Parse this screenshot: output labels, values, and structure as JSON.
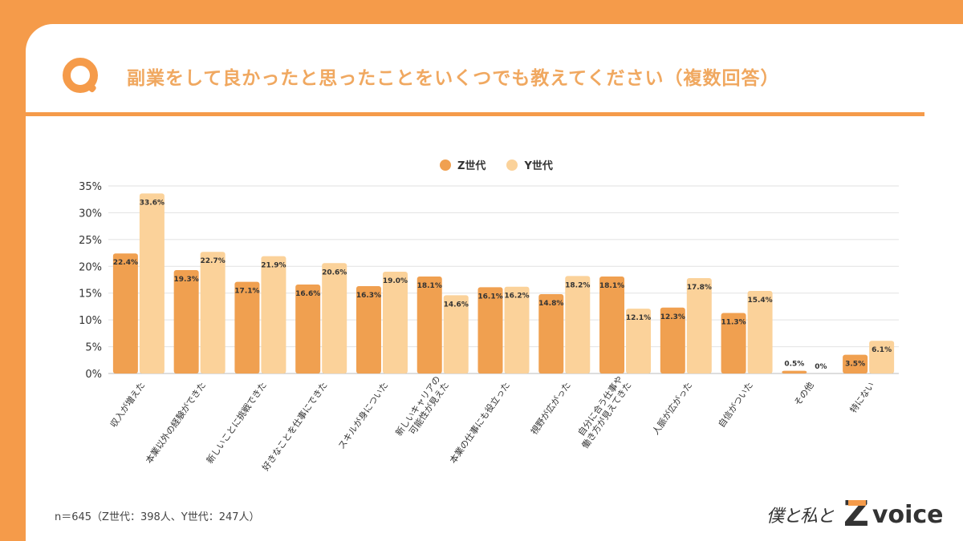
{
  "question": {
    "icon": "q-icon",
    "title": "副業をして良かったと思ったことをいくつでも教えてください（複数回答）"
  },
  "colors": {
    "frame": "#F59B4A",
    "title_text": "#F0A860",
    "z_series": "#F0A050",
    "y_series": "#FBD29A"
  },
  "chart_data": {
    "type": "bar",
    "categories": [
      "収入が増えた",
      "本業以外の経験ができた",
      "新しいことに挑戦できた",
      "好きなことを仕事にできた",
      "スキルが身についた",
      "新しいキャリアの\n可能性が見えた",
      "本業の仕事にも役立った",
      "視野が広がった",
      "自分に合う仕事や\n働き方が見えてきた",
      "人脈が広がった",
      "自信がついた",
      "その他",
      "特にない"
    ],
    "series": [
      {
        "name": "Z世代",
        "values": [
          22.4,
          19.3,
          17.1,
          16.6,
          16.3,
          18.1,
          16.1,
          14.8,
          18.1,
          12.3,
          11.3,
          0.5,
          3.5
        ]
      },
      {
        "name": "Y世代",
        "values": [
          33.6,
          22.7,
          21.9,
          20.6,
          19.0,
          14.6,
          16.2,
          18.2,
          12.1,
          17.8,
          15.4,
          0,
          6.1
        ]
      }
    ],
    "data_labels": [
      [
        "22.4%",
        "19.3%",
        "17.1%",
        "16.6%",
        "16.3%",
        "18.1%",
        "16.1%",
        "14.8%",
        "18.1%",
        "12.3%",
        "11.3%",
        "0.5%",
        "3.5%"
      ],
      [
        "33.6%",
        "22.7%",
        "21.9%",
        "20.6%",
        "19.0%",
        "14.6%",
        "16.2%",
        "18.2%",
        "12.1%",
        "17.8%",
        "15.4%",
        "0%",
        "6.1%"
      ]
    ],
    "yticks": [
      "0%",
      "5%",
      "10%",
      "15%",
      "20%",
      "25%",
      "30%",
      "35%"
    ],
    "ylim": [
      0,
      35
    ],
    "grid": true,
    "legend_position": "top-center"
  },
  "footnote": "n＝645（Z世代：398人、Y世代：247人）",
  "brand": {
    "script_text": "僕と私と",
    "z_letter": "Z",
    "voice_text": "voice"
  }
}
